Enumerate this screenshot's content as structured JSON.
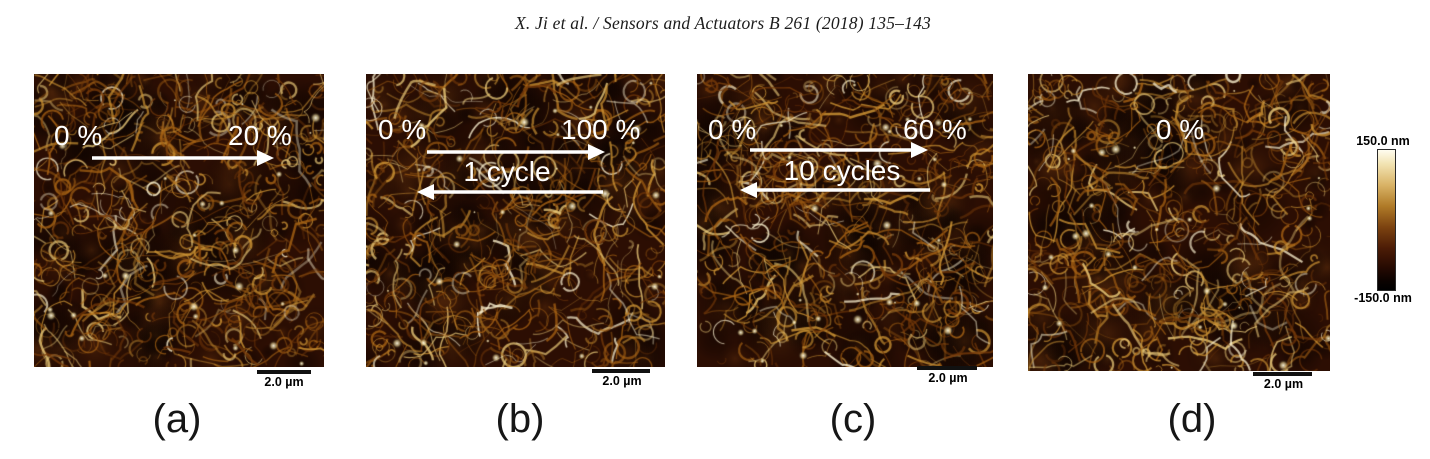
{
  "header": {
    "citation": "X. Ji et al. / Sensors and Actuators B 261 (2018) 135–143"
  },
  "figure": {
    "panels": [
      {
        "label": "(a)",
        "start_label": "0 %",
        "end_label": "20 %",
        "scalebar_label": "2.0 µm"
      },
      {
        "label": "(b)",
        "start_label": "0 %",
        "end_label": "100 %",
        "cycle_label": "1 cycle",
        "scalebar_label": "2.0 µm"
      },
      {
        "label": "(c)",
        "start_label": "0 %",
        "end_label": "60 %",
        "cycle_label": "10 cycles",
        "scalebar_label": "2.0 µm"
      },
      {
        "label": "(d)",
        "center_label": "0 %",
        "scalebar_label": "2.0 µm"
      }
    ],
    "colorbar": {
      "max_label": "150.0 nm",
      "min_label": "-150.0 nm"
    },
    "colors": {
      "background_brown": "#2c0e03",
      "fiber_gold": "#cd9434",
      "highlight_cream": "#fffdf0",
      "annotation_white": "#ffffff"
    }
  }
}
